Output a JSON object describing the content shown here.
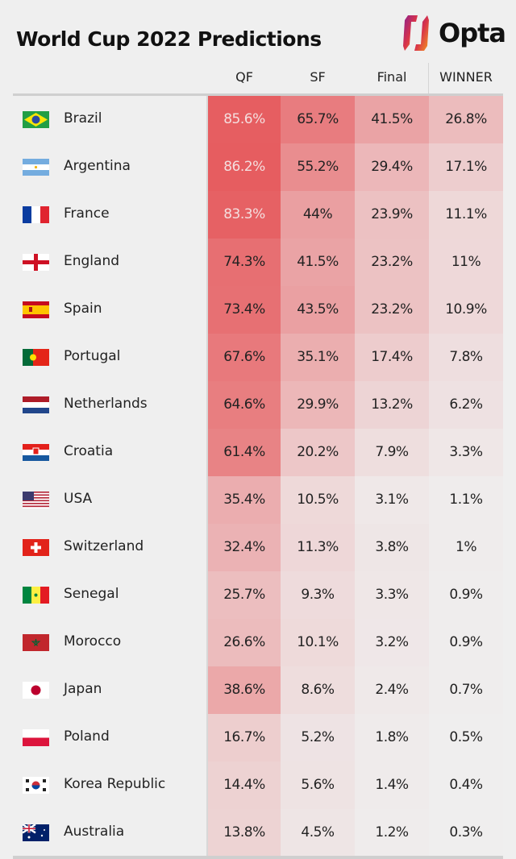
{
  "title": "World Cup 2022 Predictions",
  "logo_text": "Opta",
  "chart_data": {
    "type": "table",
    "title": "World Cup 2022 Predictions",
    "columns": [
      "QF",
      "SF",
      "Final",
      "WINNER"
    ],
    "colors": {
      "high": "#e65d60",
      "low": "#efefef",
      "background": "#efefef"
    },
    "rows": [
      {
        "team": "Brazil",
        "flag": "brazil",
        "values": [
          "85.6%",
          "65.7%",
          "41.5%",
          "26.8%"
        ]
      },
      {
        "team": "Argentina",
        "flag": "argentina",
        "values": [
          "86.2%",
          "55.2%",
          "29.4%",
          "17.1%"
        ]
      },
      {
        "team": "France",
        "flag": "france",
        "values": [
          "83.3%",
          "44%",
          "23.9%",
          "11.1%"
        ]
      },
      {
        "team": "England",
        "flag": "england",
        "values": [
          "74.3%",
          "41.5%",
          "23.2%",
          "11%"
        ]
      },
      {
        "team": "Spain",
        "flag": "spain",
        "values": [
          "73.4%",
          "43.5%",
          "23.2%",
          "10.9%"
        ]
      },
      {
        "team": "Portugal",
        "flag": "portugal",
        "values": [
          "67.6%",
          "35.1%",
          "17.4%",
          "7.8%"
        ]
      },
      {
        "team": "Netherlands",
        "flag": "netherlands",
        "values": [
          "64.6%",
          "29.9%",
          "13.2%",
          "6.2%"
        ]
      },
      {
        "team": "Croatia",
        "flag": "croatia",
        "values": [
          "61.4%",
          "20.2%",
          "7.9%",
          "3.3%"
        ]
      },
      {
        "team": "USA",
        "flag": "usa",
        "values": [
          "35.4%",
          "10.5%",
          "3.1%",
          "1.1%"
        ]
      },
      {
        "team": "Switzerland",
        "flag": "switzerland",
        "values": [
          "32.4%",
          "11.3%",
          "3.8%",
          "1%"
        ]
      },
      {
        "team": "Senegal",
        "flag": "senegal",
        "values": [
          "25.7%",
          "9.3%",
          "3.3%",
          "0.9%"
        ]
      },
      {
        "team": "Morocco",
        "flag": "morocco",
        "values": [
          "26.6%",
          "10.1%",
          "3.2%",
          "0.9%"
        ]
      },
      {
        "team": "Japan",
        "flag": "japan",
        "values": [
          "38.6%",
          "8.6%",
          "2.4%",
          "0.7%"
        ]
      },
      {
        "team": "Poland",
        "flag": "poland",
        "values": [
          "16.7%",
          "5.2%",
          "1.8%",
          "0.5%"
        ]
      },
      {
        "team": "Korea Republic",
        "flag": "korea",
        "values": [
          "14.4%",
          "5.6%",
          "1.4%",
          "0.4%"
        ]
      },
      {
        "team": "Australia",
        "flag": "australia",
        "values": [
          "13.8%",
          "4.5%",
          "1.2%",
          "0.3%"
        ]
      }
    ]
  }
}
